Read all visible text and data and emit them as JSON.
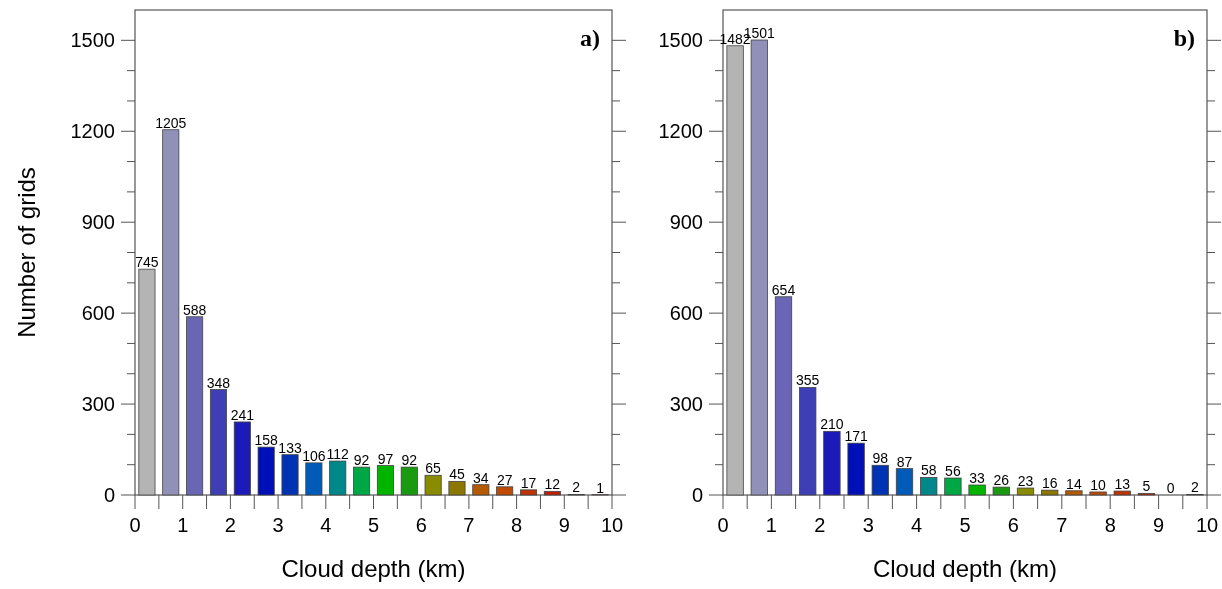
{
  "chart_data": [
    {
      "type": "bar",
      "xlabel": "Cloud depth (km)",
      "ylabel": "Number of grids",
      "annotations": [
        "a)"
      ],
      "x": [
        0.25,
        0.75,
        1.25,
        1.75,
        2.25,
        2.75,
        3.25,
        3.75,
        4.25,
        4.75,
        5.25,
        5.75,
        6.25,
        6.75,
        7.25,
        7.75,
        8.25,
        8.75,
        9.25,
        9.75
      ],
      "values": [
        745,
        1205,
        588,
        348,
        241,
        158,
        133,
        106,
        112,
        92,
        97,
        92,
        65,
        45,
        34,
        27,
        17,
        12,
        2,
        1
      ],
      "colors": [
        "#b4b4b4",
        "#9090b8",
        "#6a66b5",
        "#3f3fb5",
        "#1c1ab8",
        "#0010b8",
        "#0032b4",
        "#005ab8",
        "#00878a",
        "#00a845",
        "#00b400",
        "#1a9a10",
        "#8a8c00",
        "#8c7800",
        "#b45a00",
        "#bf4a00",
        "#c03200",
        "#c01e00",
        "#a01010",
        "#800808"
      ],
      "data_labels": true,
      "xlim": [
        0,
        10
      ],
      "xticks": [
        0,
        {
          "value": 0.5,
          "label": null
        },
        1,
        {
          "value": 1.5,
          "label": null
        },
        2,
        {
          "value": 2.5,
          "label": null
        },
        3,
        {
          "value": 3.5,
          "label": null
        },
        4,
        {
          "value": 4.5,
          "label": null
        },
        5,
        {
          "value": 5.5,
          "label": null
        },
        6,
        {
          "value": 6.5,
          "label": null
        },
        7,
        {
          "value": 7.5,
          "label": null
        },
        8,
        {
          "value": 8.5,
          "label": null
        },
        9,
        {
          "value": 9.5,
          "label": null
        },
        10
      ],
      "ylim": [
        0,
        1600
      ],
      "yticks": [
        0,
        {
          "value": 100,
          "label": null
        },
        {
          "value": 200,
          "label": null
        },
        300,
        {
          "value": 400,
          "label": null
        },
        {
          "value": 500,
          "label": null
        },
        600,
        {
          "value": 700,
          "label": null
        },
        {
          "value": 800,
          "label": null
        },
        900,
        {
          "value": 1000,
          "label": null
        },
        {
          "value": 1100,
          "label": null
        },
        1200,
        {
          "value": 1300,
          "label": null
        },
        {
          "value": 1400,
          "label": null
        },
        1500
      ]
    },
    {
      "type": "bar",
      "xlabel": "Cloud depth (km)",
      "annotations": [
        "b)"
      ],
      "x": [
        0.25,
        0.75,
        1.25,
        1.75,
        2.25,
        2.75,
        3.25,
        3.75,
        4.25,
        4.75,
        5.25,
        5.75,
        6.25,
        6.75,
        7.25,
        7.75,
        8.25,
        8.75,
        9.25,
        9.75
      ],
      "values": [
        1482,
        1501,
        654,
        355,
        210,
        171,
        98,
        87,
        58,
        56,
        33,
        26,
        23,
        16,
        14,
        10,
        13,
        5,
        0,
        2
      ],
      "colors": [
        "#b4b4b4",
        "#9090b8",
        "#6a66b5",
        "#3f3fb5",
        "#1c1ab8",
        "#0010b8",
        "#0032b4",
        "#005ab8",
        "#00878a",
        "#00a845",
        "#00b400",
        "#1a9a10",
        "#8a8c00",
        "#8c7800",
        "#b45a00",
        "#bf4a00",
        "#c03200",
        "#c01e00",
        "#a01010",
        "#800808"
      ],
      "data_labels": true,
      "xlim": [
        0,
        10
      ],
      "xticks": [
        0,
        {
          "value": 0.5,
          "label": null
        },
        1,
        {
          "value": 1.5,
          "label": null
        },
        2,
        {
          "value": 2.5,
          "label": null
        },
        3,
        {
          "value": 3.5,
          "label": null
        },
        4,
        {
          "value": 4.5,
          "label": null
        },
        5,
        {
          "value": 5.5,
          "label": null
        },
        6,
        {
          "value": 6.5,
          "label": null
        },
        7,
        {
          "value": 7.5,
          "label": null
        },
        8,
        {
          "value": 8.5,
          "label": null
        },
        9,
        {
          "value": 9.5,
          "label": null
        },
        10
      ],
      "ylim": [
        0,
        1600
      ],
      "yticks": [
        0,
        {
          "value": 100,
          "label": null
        },
        {
          "value": 200,
          "label": null
        },
        300,
        {
          "value": 400,
          "label": null
        },
        {
          "value": 500,
          "label": null
        },
        600,
        {
          "value": 700,
          "label": null
        },
        {
          "value": 800,
          "label": null
        },
        900,
        {
          "value": 1000,
          "label": null
        },
        {
          "value": 1100,
          "label": null
        },
        1200,
        {
          "value": 1300,
          "label": null
        },
        {
          "value": 1400,
          "label": null
        },
        1500
      ]
    }
  ]
}
